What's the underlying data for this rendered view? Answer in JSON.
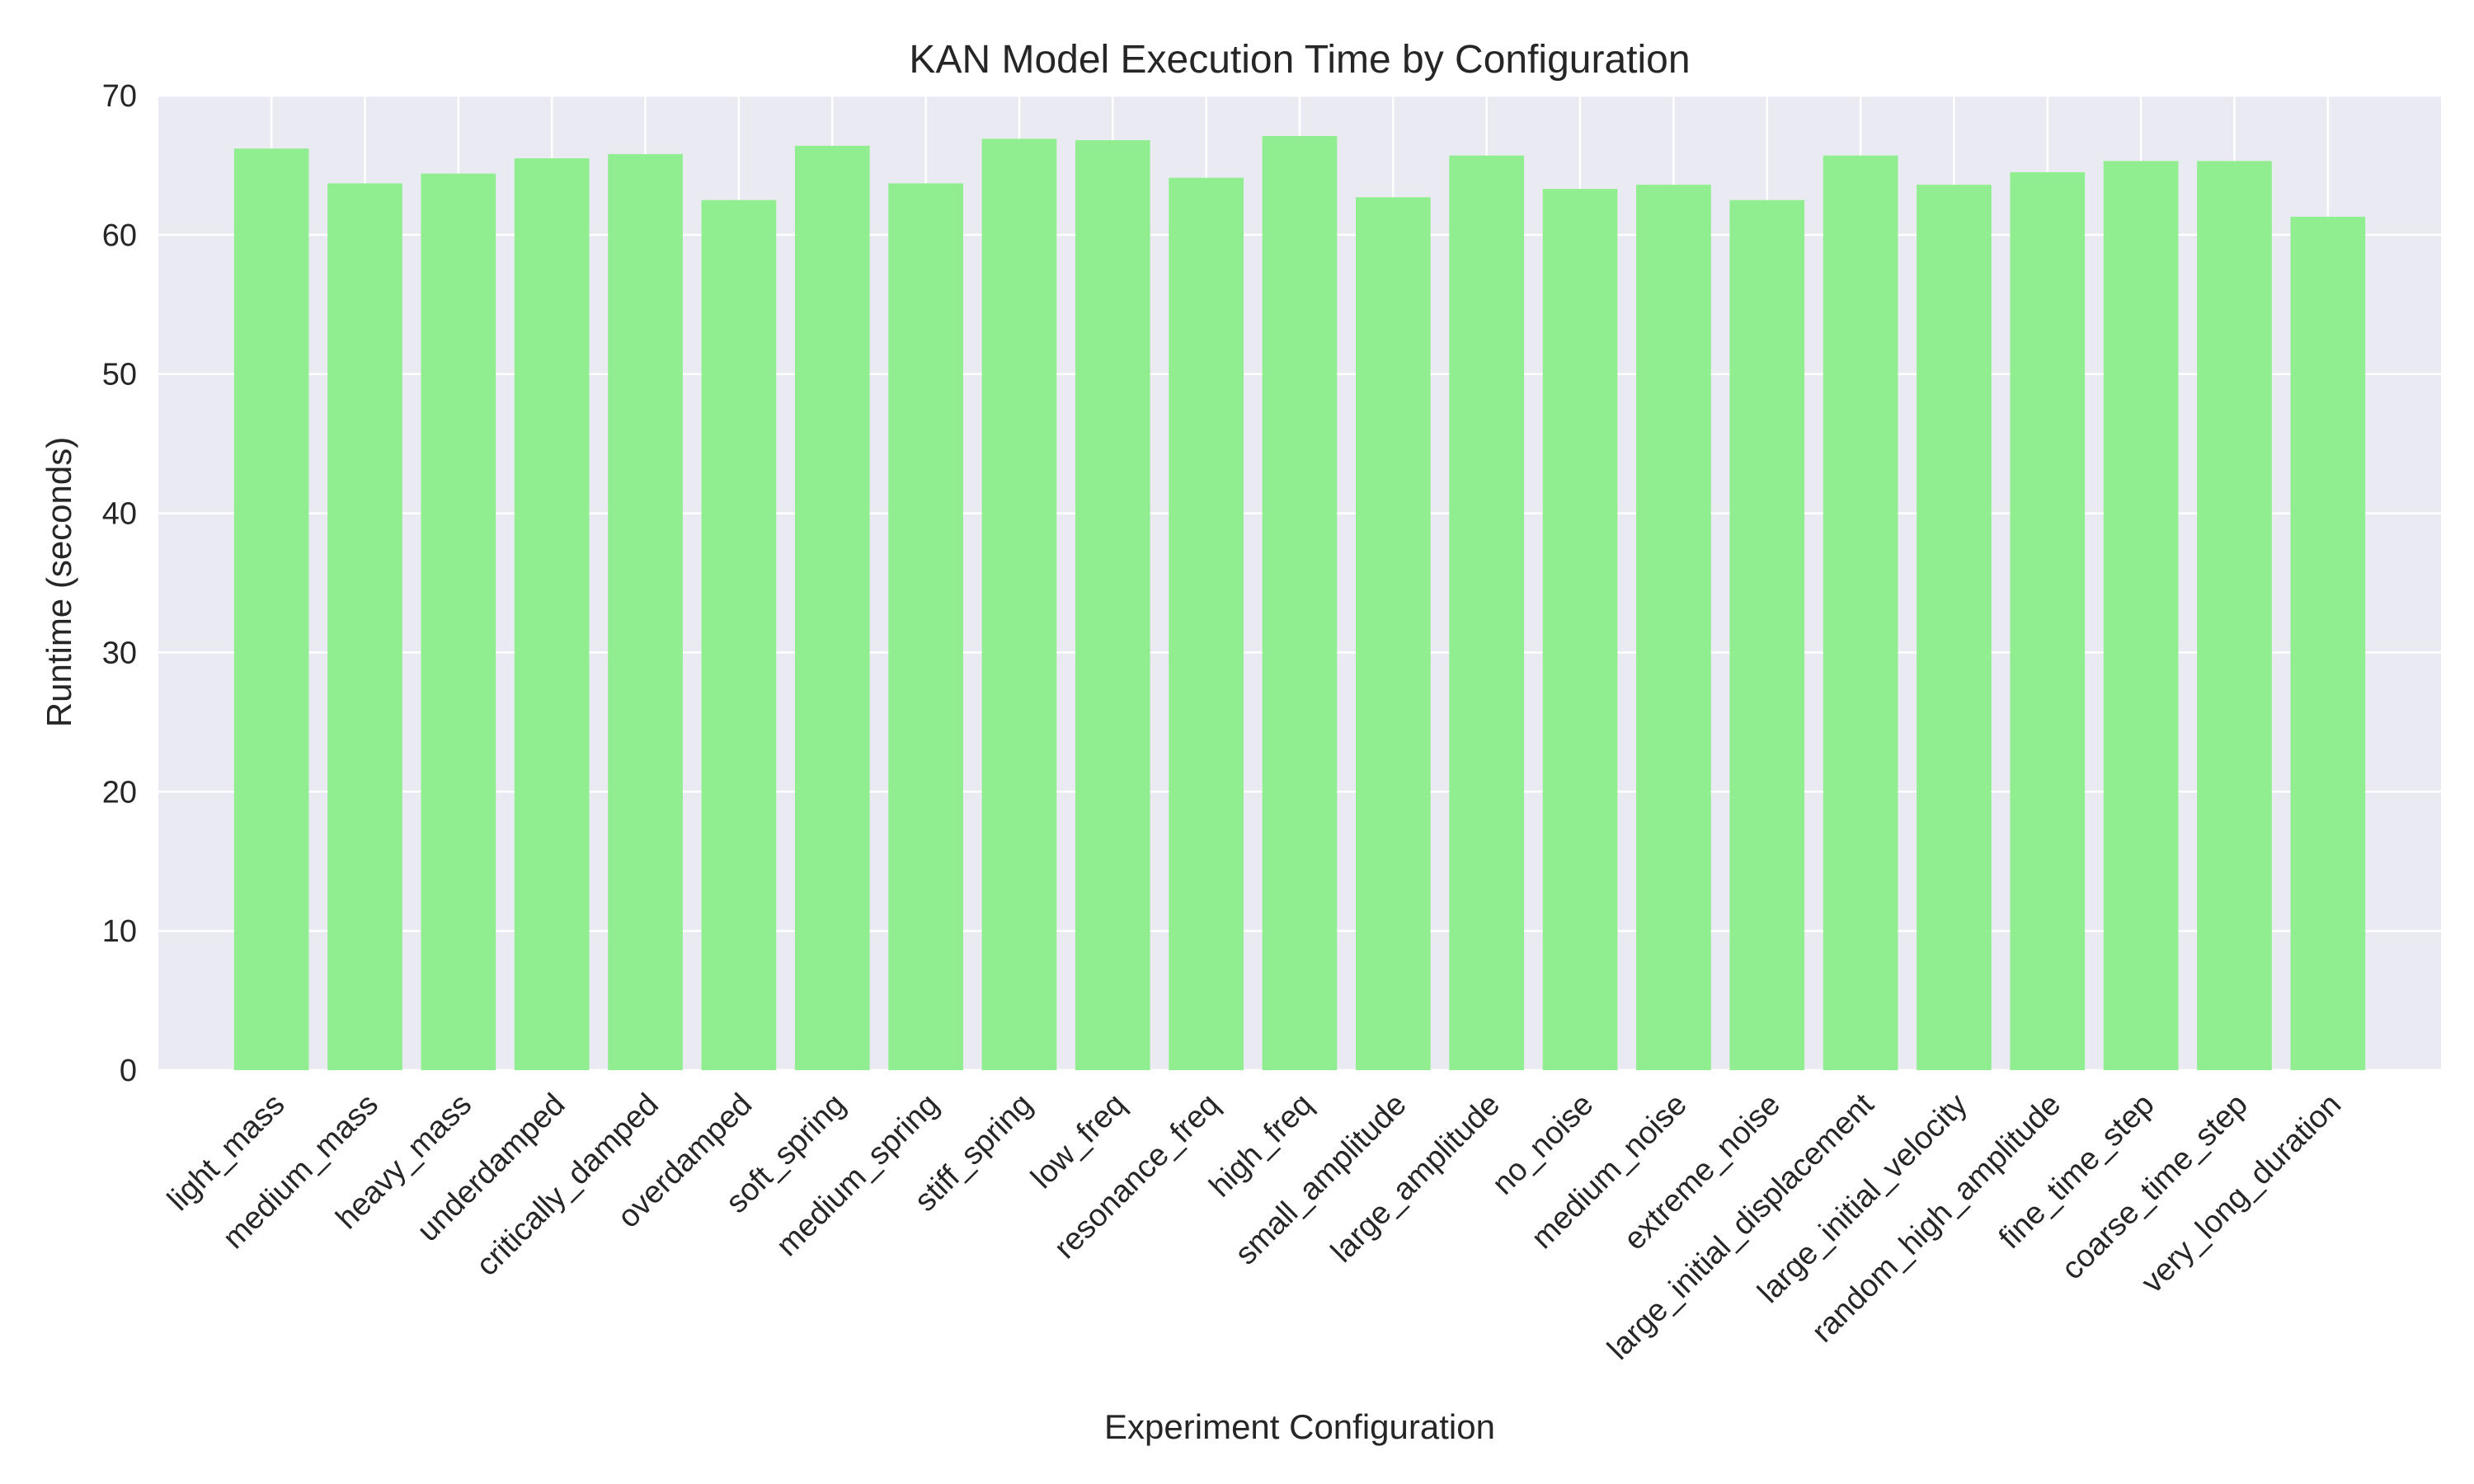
{
  "colors": {
    "bar": "#90ee90",
    "plot_background": "#eaeaf2",
    "grid": "#ffffff"
  },
  "chart_data": {
    "type": "bar",
    "title": "KAN Model Execution Time by Configuration",
    "xlabel": "Experiment Configuration",
    "ylabel": "Runtime (seconds)",
    "ylim": [
      0,
      70
    ],
    "yticks": [
      0,
      10,
      20,
      30,
      40,
      50,
      60,
      70
    ],
    "grid": true,
    "legend": "none",
    "categories": [
      "light_mass",
      "medium_mass",
      "heavy_mass",
      "underdamped",
      "critically_damped",
      "overdamped",
      "soft_spring",
      "medium_spring",
      "stiff_spring",
      "low_freq",
      "resonance_freq",
      "high_freq",
      "small_amplitude",
      "large_amplitude",
      "no_noise",
      "medium_noise",
      "extreme_noise",
      "large_initial_displacement",
      "large_initial_velocity",
      "random_high_amplitude",
      "fine_time_step",
      "coarse_time_step",
      "very_long_duration"
    ],
    "values": [
      66.2,
      63.7,
      64.4,
      65.5,
      65.8,
      62.5,
      66.4,
      63.7,
      66.9,
      66.8,
      64.1,
      67.1,
      62.7,
      65.7,
      63.3,
      63.6,
      62.5,
      65.7,
      63.6,
      64.5,
      65.3,
      65.3,
      61.3
    ]
  }
}
